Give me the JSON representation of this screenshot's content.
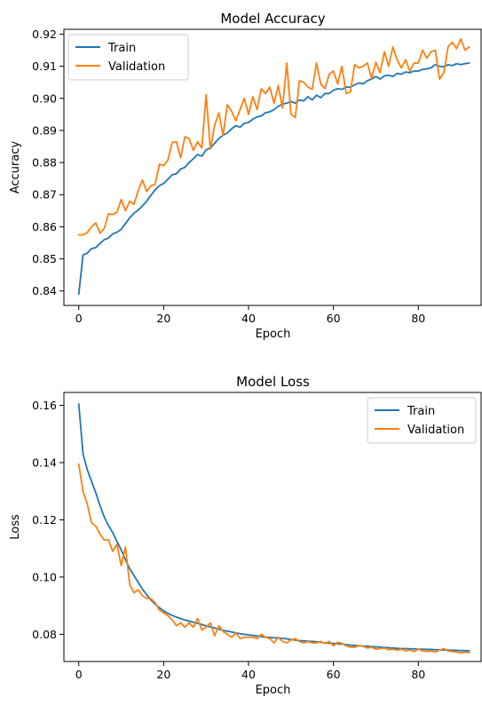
{
  "chart_data": [
    {
      "type": "line",
      "title": "Model Accuracy",
      "xlabel": "Epoch",
      "ylabel": "Accuracy",
      "xlim": [
        -3.5,
        95
      ],
      "ylim": [
        0.8355,
        0.9215
      ],
      "xticks": [
        0,
        20,
        40,
        60,
        80
      ],
      "xtick_labels": [
        "0",
        "20",
        "40",
        "60",
        "80"
      ],
      "yticks": [
        0.84,
        0.85,
        0.86,
        0.87,
        0.88,
        0.89,
        0.9,
        0.91,
        0.92
      ],
      "ytick_labels": [
        "0.84",
        "0.85",
        "0.86",
        "0.87",
        "0.88",
        "0.89",
        "0.90",
        "0.91",
        "0.92"
      ],
      "legend": "top-left",
      "grid": false,
      "x": [
        0,
        1,
        2,
        3,
        4,
        5,
        6,
        7,
        8,
        9,
        10,
        11,
        12,
        13,
        14,
        15,
        16,
        17,
        18,
        19,
        20,
        21,
        22,
        23,
        24,
        25,
        26,
        27,
        28,
        29,
        30,
        31,
        32,
        33,
        34,
        35,
        36,
        37,
        38,
        39,
        40,
        41,
        42,
        43,
        44,
        45,
        46,
        47,
        48,
        49,
        50,
        51,
        52,
        53,
        54,
        55,
        56,
        57,
        58,
        59,
        60,
        61,
        62,
        63,
        64,
        65,
        66,
        67,
        68,
        69,
        70,
        71,
        72,
        73,
        74,
        75,
        76,
        77,
        78,
        79,
        80,
        81,
        82,
        83,
        84,
        85,
        86,
        87,
        88,
        89,
        90,
        91,
        92
      ],
      "series": [
        {
          "name": "Train",
          "color": "#1f77b4",
          "values": [
            0.839,
            0.8512,
            0.8518,
            0.8532,
            0.8535,
            0.8548,
            0.856,
            0.8565,
            0.8578,
            0.8583,
            0.8592,
            0.861,
            0.8628,
            0.8642,
            0.8652,
            0.8665,
            0.868,
            0.8698,
            0.8715,
            0.8728,
            0.8735,
            0.8748,
            0.8762,
            0.8765,
            0.878,
            0.8785,
            0.88,
            0.8812,
            0.8825,
            0.882,
            0.884,
            0.8845,
            0.886,
            0.8875,
            0.8885,
            0.8892,
            0.8905,
            0.8915,
            0.891,
            0.8922,
            0.8925,
            0.8935,
            0.8942,
            0.8945,
            0.8955,
            0.8958,
            0.8965,
            0.8975,
            0.8982,
            0.8985,
            0.899,
            0.8985,
            0.8995,
            0.8992,
            0.9005,
            0.8995,
            0.901,
            0.9002,
            0.9015,
            0.9015,
            0.9025,
            0.903,
            0.9028,
            0.9035,
            0.9035,
            0.9042,
            0.9048,
            0.9045,
            0.9055,
            0.906,
            0.9068,
            0.906,
            0.907,
            0.9072,
            0.9068,
            0.9078,
            0.9075,
            0.9082,
            0.908,
            0.9085,
            0.9085,
            0.909,
            0.9092,
            0.9095,
            0.9105,
            0.91,
            0.9098,
            0.9105,
            0.9102,
            0.9108,
            0.9105,
            0.9108,
            0.911
          ]
        },
        {
          "name": "Validation",
          "color": "#ff7f0e",
          "values": [
            0.8575,
            0.8575,
            0.8582,
            0.86,
            0.8612,
            0.858,
            0.8595,
            0.864,
            0.8638,
            0.8645,
            0.8685,
            0.865,
            0.868,
            0.867,
            0.8712,
            0.8745,
            0.871,
            0.8728,
            0.8732,
            0.8795,
            0.879,
            0.8808,
            0.8862,
            0.8865,
            0.8815,
            0.888,
            0.8875,
            0.8838,
            0.8865,
            0.8845,
            0.9012,
            0.8842,
            0.8915,
            0.8955,
            0.8885,
            0.898,
            0.896,
            0.893,
            0.8965,
            0.9,
            0.895,
            0.9005,
            0.8965,
            0.903,
            0.9015,
            0.9035,
            0.8985,
            0.904,
            0.897,
            0.911,
            0.895,
            0.894,
            0.9055,
            0.905,
            0.9035,
            0.9028,
            0.911,
            0.9045,
            0.903,
            0.9075,
            0.9085,
            0.9045,
            0.91,
            0.9015,
            0.902,
            0.9105,
            0.9095,
            0.91,
            0.911,
            0.9062,
            0.9112,
            0.908,
            0.9145,
            0.91,
            0.916,
            0.912,
            0.9095,
            0.912,
            0.9085,
            0.911,
            0.911,
            0.915,
            0.9125,
            0.9145,
            0.915,
            0.906,
            0.908,
            0.916,
            0.9175,
            0.9155,
            0.9185,
            0.915,
            0.916
          ]
        }
      ]
    },
    {
      "type": "line",
      "title": "Model Loss",
      "xlabel": "Epoch",
      "ylabel": "Loss",
      "xlim": [
        -3.5,
        95
      ],
      "ylim": [
        0.0705,
        0.1645
      ],
      "xticks": [
        0,
        20,
        40,
        60,
        80
      ],
      "xtick_labels": [
        "0",
        "20",
        "40",
        "60",
        "80"
      ],
      "yticks": [
        0.08,
        0.1,
        0.12,
        0.14,
        0.16
      ],
      "ytick_labels": [
        "0.08",
        "0.10",
        "0.12",
        "0.14",
        "0.16"
      ],
      "legend": "top-right",
      "grid": false,
      "x": [
        0,
        1,
        2,
        3,
        4,
        5,
        6,
        7,
        8,
        9,
        10,
        11,
        12,
        13,
        14,
        15,
        16,
        17,
        18,
        19,
        20,
        21,
        22,
        23,
        24,
        25,
        26,
        27,
        28,
        29,
        30,
        31,
        32,
        33,
        34,
        35,
        36,
        37,
        38,
        39,
        40,
        41,
        42,
        43,
        44,
        45,
        46,
        47,
        48,
        49,
        50,
        51,
        52,
        53,
        54,
        55,
        56,
        57,
        58,
        59,
        60,
        61,
        62,
        63,
        64,
        65,
        66,
        67,
        68,
        69,
        70,
        71,
        72,
        73,
        74,
        75,
        76,
        77,
        78,
        79,
        80,
        81,
        82,
        83,
        84,
        85,
        86,
        87,
        88,
        89,
        90,
        91,
        92
      ],
      "series": [
        {
          "name": "Train",
          "color": "#1f77b4",
          "values": [
            0.1605,
            0.143,
            0.1375,
            0.1335,
            0.1295,
            0.125,
            0.121,
            0.118,
            0.1155,
            0.1125,
            0.1095,
            0.106,
            0.103,
            0.1005,
            0.0982,
            0.0958,
            0.0938,
            0.092,
            0.0905,
            0.0893,
            0.0882,
            0.0873,
            0.0866,
            0.086,
            0.0855,
            0.085,
            0.0846,
            0.0842,
            0.0838,
            0.0834,
            0.083,
            0.0826,
            0.0822,
            0.0818,
            0.0814,
            0.0811,
            0.0808,
            0.0805,
            0.0802,
            0.08,
            0.0798,
            0.0796,
            0.0794,
            0.0792,
            0.079,
            0.0789,
            0.0788,
            0.0787,
            0.0786,
            0.0784,
            0.0782,
            0.078,
            0.0778,
            0.0777,
            0.0776,
            0.0775,
            0.0774,
            0.0772,
            0.077,
            0.0769,
            0.0768,
            0.0767,
            0.0766,
            0.0764,
            0.0762,
            0.0761,
            0.076,
            0.0759,
            0.0758,
            0.0757,
            0.0756,
            0.0755,
            0.0754,
            0.0753,
            0.0752,
            0.0751,
            0.075,
            0.075,
            0.0749,
            0.0749,
            0.0748,
            0.0748,
            0.0747,
            0.0747,
            0.0746,
            0.0746,
            0.0745,
            0.0745,
            0.0744,
            0.0744,
            0.0743,
            0.0743,
            0.0742
          ]
        },
        {
          "name": "Validation",
          "color": "#ff7f0e",
          "values": [
            0.1395,
            0.13,
            0.1255,
            0.119,
            0.1178,
            0.115,
            0.113,
            0.113,
            0.109,
            0.1115,
            0.104,
            0.1105,
            0.0975,
            0.0945,
            0.0955,
            0.0935,
            0.0925,
            0.0925,
            0.091,
            0.0885,
            0.0875,
            0.0865,
            0.085,
            0.083,
            0.084,
            0.0825,
            0.084,
            0.0825,
            0.0855,
            0.0815,
            0.0825,
            0.084,
            0.0795,
            0.083,
            0.081,
            0.08,
            0.079,
            0.0805,
            0.0785,
            0.079,
            0.079,
            0.079,
            0.0785,
            0.08,
            0.079,
            0.0785,
            0.077,
            0.079,
            0.0775,
            0.077,
            0.078,
            0.0785,
            0.0775,
            0.077,
            0.0775,
            0.077,
            0.077,
            0.0775,
            0.0768,
            0.0775,
            0.076,
            0.0772,
            0.0768,
            0.076,
            0.0755,
            0.0755,
            0.076,
            0.0758,
            0.0752,
            0.0755,
            0.0748,
            0.075,
            0.0752,
            0.0746,
            0.0748,
            0.0745,
            0.0748,
            0.0742,
            0.0745,
            0.074,
            0.0748,
            0.0742,
            0.074,
            0.0742,
            0.0738,
            0.0745,
            0.075,
            0.0742,
            0.074,
            0.0738,
            0.0735,
            0.0738,
            0.0736
          ]
        }
      ]
    }
  ]
}
